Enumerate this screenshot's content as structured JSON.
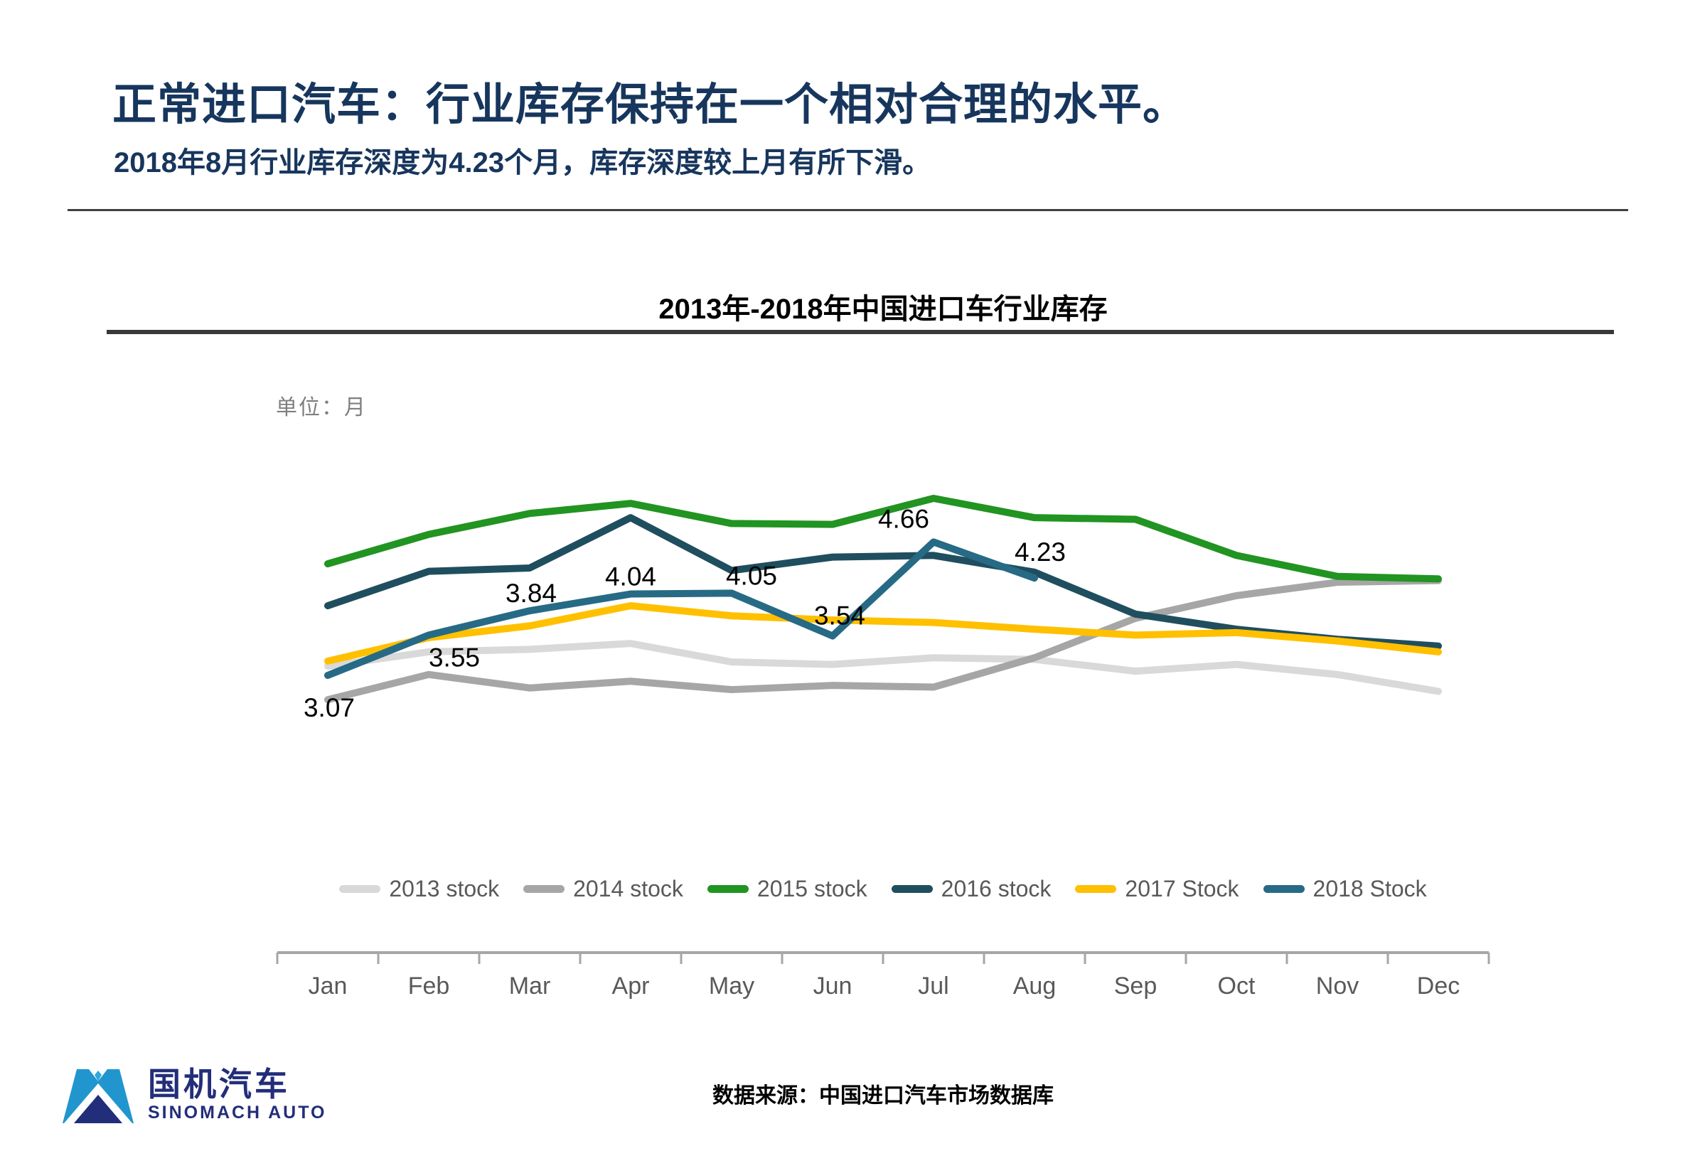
{
  "header": {
    "title": "正常进口汽车：行业库存保持在一个相对合理的水平。",
    "subtitle": "2018年8月行业库存深度为4.23个月，库存深度较上月有所下滑。"
  },
  "chart": {
    "title": "2013年-2018年中国进口车行业库存",
    "unit_label": "单位：月"
  },
  "chart_data": {
    "type": "line",
    "categories": [
      "Jan",
      "Feb",
      "Mar",
      "Apr",
      "May",
      "Jun",
      "Jul",
      "Aug",
      "Sep",
      "Oct",
      "Nov",
      "Dec"
    ],
    "ylim": [
      2.5,
      5.5
    ],
    "grid": false,
    "legend_position": "bottom",
    "series": [
      {
        "name": "2013 stock",
        "color": "#D9D9D9",
        "values": [
          3.18,
          3.35,
          3.38,
          3.45,
          3.23,
          3.2,
          3.28,
          3.26,
          3.12,
          3.2,
          3.08,
          2.88
        ]
      },
      {
        "name": "2014 stock",
        "color": "#A6A6A6",
        "values": [
          2.78,
          3.08,
          2.92,
          3.0,
          2.9,
          2.95,
          2.93,
          3.28,
          3.75,
          4.02,
          4.18,
          4.2
        ]
      },
      {
        "name": "2015 stock",
        "color": "#219421",
        "values": [
          4.4,
          4.75,
          5.0,
          5.12,
          4.88,
          4.87,
          5.18,
          4.95,
          4.93,
          4.5,
          4.25,
          4.22
        ]
      },
      {
        "name": "2016 stock",
        "color": "#1F4E5F",
        "values": [
          3.9,
          4.31,
          4.35,
          4.95,
          4.32,
          4.48,
          4.5,
          4.3,
          3.8,
          3.62,
          3.5,
          3.42
        ]
      },
      {
        "name": "2017 Stock",
        "color": "#FFC000",
        "values": [
          3.24,
          3.52,
          3.66,
          3.9,
          3.78,
          3.73,
          3.7,
          3.62,
          3.55,
          3.58,
          3.48,
          3.35
        ]
      },
      {
        "name": "2018 Stock",
        "color": "#276A85",
        "values": [
          3.07,
          3.55,
          3.84,
          4.04,
          4.05,
          3.54,
          4.66,
          4.23,
          null,
          null,
          null,
          null
        ],
        "data_labels": [
          "3.07",
          "3.55",
          "3.84",
          "4.04",
          "4.05",
          "3.54",
          "4.66",
          "4.23"
        ]
      }
    ]
  },
  "footer": {
    "source": "数据来源：中国进口汽车市场数据库",
    "logo_cn": "国机汽车",
    "logo_en": "SINOMACH AUTO"
  }
}
